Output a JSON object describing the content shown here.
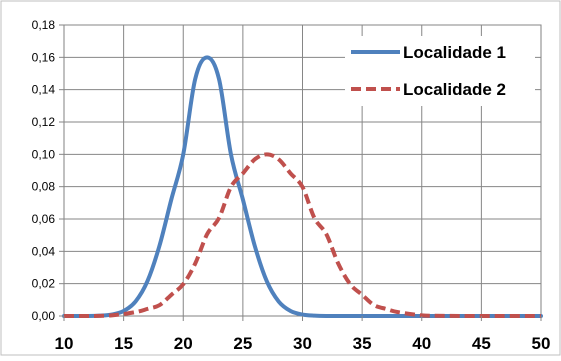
{
  "chart_data": {
    "type": "line",
    "title": "",
    "xlabel": "",
    "ylabel": "",
    "xlim": [
      10,
      50
    ],
    "ylim": [
      0,
      0.18
    ],
    "x_ticks": [
      "10",
      "15",
      "20",
      "25",
      "30",
      "35",
      "40",
      "45",
      "50"
    ],
    "y_ticks": [
      "0,00",
      "0,02",
      "0,04",
      "0,06",
      "0,08",
      "0,10",
      "0,12",
      "0,14",
      "0,16",
      "0,18"
    ],
    "grid": true,
    "legend_position": "top-right",
    "series": [
      {
        "name": "Localidade 1",
        "color": "#4F81BD",
        "style": "solid",
        "x": [
          10,
          12,
          13,
          14,
          15,
          16,
          17,
          18,
          19,
          20,
          21,
          22,
          23,
          24,
          25,
          26,
          27,
          28,
          29,
          30,
          31,
          32,
          34,
          36,
          40,
          45,
          50
        ],
        "y": [
          0.0,
          0.0,
          0.0002,
          0.0009,
          0.0031,
          0.009,
          0.0216,
          0.0433,
          0.0721,
          0.1,
          0.1465,
          0.16,
          0.1465,
          0.1,
          0.0721,
          0.0433,
          0.0216,
          0.009,
          0.0031,
          0.0009,
          0.0002,
          0.0,
          0.0,
          0.0,
          0.0,
          0.0,
          0.0
        ]
      },
      {
        "name": "Localidade 2",
        "color": "#C0504D",
        "style": "dashed",
        "x": [
          10,
          12,
          14,
          16,
          17,
          18,
          19,
          20,
          21,
          22,
          23,
          24,
          25,
          26,
          27,
          28,
          29,
          30,
          31,
          32,
          33,
          34,
          35,
          36,
          37,
          38,
          40,
          42,
          45,
          50
        ],
        "y": [
          0.0,
          0.0,
          0.0004,
          0.0024,
          0.0044,
          0.0067,
          0.0131,
          0.0197,
          0.0324,
          0.0506,
          0.0606,
          0.0798,
          0.0882,
          0.0969,
          0.1,
          0.0969,
          0.0882,
          0.0798,
          0.0606,
          0.0506,
          0.0324,
          0.0197,
          0.0131,
          0.0067,
          0.0044,
          0.0024,
          0.0004,
          0.0001,
          0.0,
          0.0
        ]
      }
    ]
  }
}
